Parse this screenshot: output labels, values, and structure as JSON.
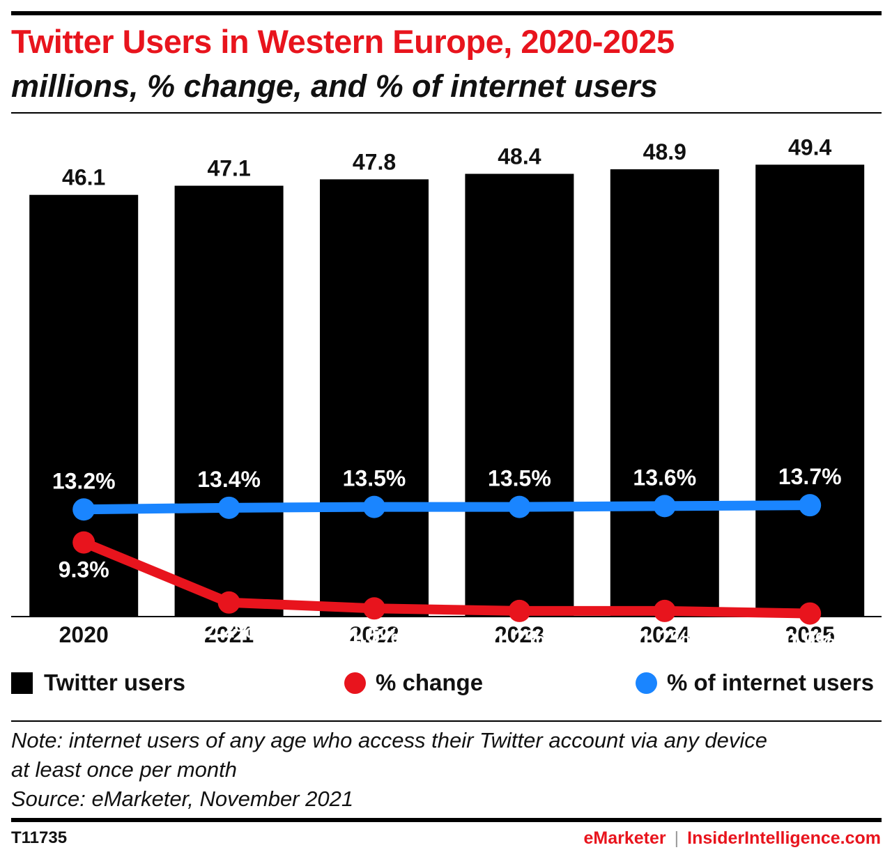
{
  "title": "Twitter Users in Western Europe, 2020-2025",
  "subtitle": "millions, % change, and % of internet users",
  "chart_data": {
    "type": "bar",
    "categories": [
      "2020",
      "2021",
      "2022",
      "2023",
      "2024",
      "2025"
    ],
    "series": [
      {
        "name": "Twitter users",
        "type": "bar",
        "color": "#000000",
        "values": [
          46.1,
          47.1,
          47.8,
          48.4,
          48.9,
          49.4
        ],
        "labels": [
          "46.1",
          "47.1",
          "47.8",
          "48.4",
          "48.9",
          "49.4"
        ]
      },
      {
        "name": "% change",
        "type": "line",
        "color": "#e8141d",
        "values": [
          9.3,
          2.2,
          1.5,
          1.2,
          1.2,
          0.9
        ],
        "labels": [
          "9.3%",
          "2.2%",
          "1.5%",
          "1.2%",
          "1.2%",
          "0.9%"
        ]
      },
      {
        "name": "% of internet users",
        "type": "line",
        "color": "#1a85ff",
        "values": [
          13.2,
          13.4,
          13.5,
          13.5,
          13.6,
          13.7
        ],
        "labels": [
          "13.2%",
          "13.4%",
          "13.5%",
          "13.5%",
          "13.6%",
          "13.7%"
        ]
      }
    ],
    "legend_position": "bottom",
    "grid": false
  },
  "legend": {
    "bars_label": "Twitter users",
    "change_label": "% change",
    "internet_label": "% of internet users"
  },
  "notes": {
    "note_line1": "Note: internet users of any age who access their Twitter account via any device",
    "note_line2": "at least once per month",
    "source": "Source: eMarketer, November 2021"
  },
  "footer": {
    "id": "T11735",
    "brand1": "eMarketer",
    "separator": "|",
    "brand2": "InsiderIntelligence.com"
  }
}
